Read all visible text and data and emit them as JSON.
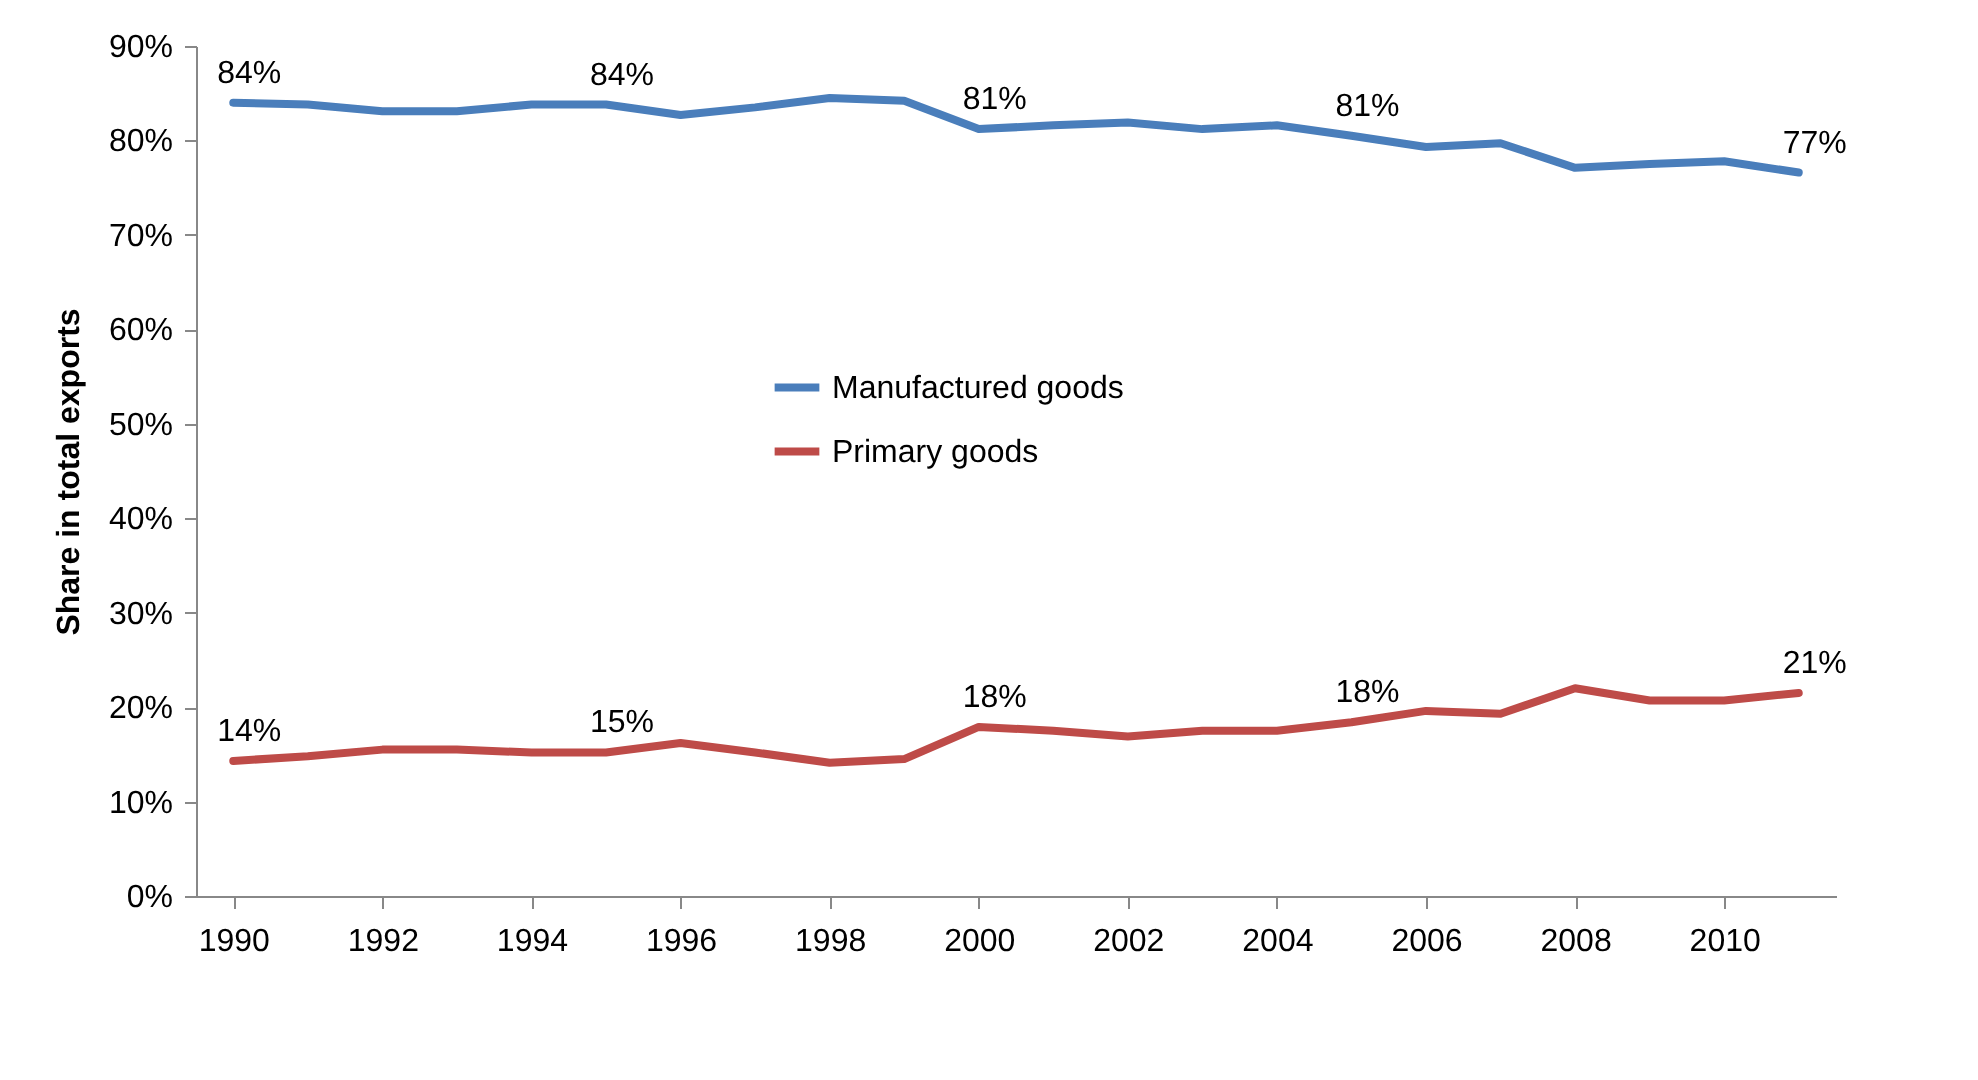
{
  "chart_data": {
    "type": "line",
    "ylabel": "Share in total exports",
    "x": [
      1990,
      1991,
      1992,
      1993,
      1994,
      1995,
      1996,
      1997,
      1998,
      1999,
      2000,
      2001,
      2002,
      2003,
      2004,
      2005,
      2006,
      2007,
      2008,
      2009,
      2010,
      2011
    ],
    "series": [
      {
        "name": "Manufactured goods",
        "color": "#4a7ebb",
        "values": [
          84.0,
          83.8,
          83.1,
          83.1,
          83.8,
          83.8,
          82.7,
          83.5,
          84.5,
          84.2,
          81.2,
          81.6,
          81.9,
          81.2,
          81.6,
          80.5,
          79.3,
          79.7,
          77.1,
          77.5,
          77.8,
          76.6
        ],
        "value_labels": [
          "84%",
          null,
          null,
          null,
          null,
          "84%",
          null,
          null,
          null,
          null,
          "81%",
          null,
          null,
          null,
          null,
          "81%",
          null,
          null,
          null,
          null,
          null,
          "77%"
        ]
      },
      {
        "name": "Primary goods",
        "color": "#be4b48",
        "values": [
          14.3,
          14.8,
          15.5,
          15.5,
          15.2,
          15.2,
          16.2,
          15.2,
          14.1,
          14.5,
          17.9,
          17.5,
          16.9,
          17.5,
          17.5,
          18.4,
          19.6,
          19.3,
          22.0,
          20.7,
          20.7,
          21.5
        ],
        "value_labels": [
          "14%",
          null,
          null,
          null,
          null,
          "15%",
          null,
          null,
          null,
          null,
          "18%",
          null,
          null,
          null,
          null,
          "18%",
          null,
          null,
          null,
          null,
          null,
          "21%"
        ]
      }
    ],
    "xlim": [
      1989.5,
      2011.5
    ],
    "xticks": [
      1990,
      1992,
      1994,
      1996,
      1998,
      2000,
      2002,
      2004,
      2006,
      2008,
      2010
    ],
    "ylim": [
      0,
      90
    ],
    "yticks": [
      {
        "value": 0,
        "label": "0%"
      },
      {
        "value": 10,
        "label": "10%"
      },
      {
        "value": 20,
        "label": "20%"
      },
      {
        "value": 30,
        "label": "30%"
      },
      {
        "value": 40,
        "label": "40%"
      },
      {
        "value": 50,
        "label": "50%"
      },
      {
        "value": 60,
        "label": "60%"
      },
      {
        "value": 70,
        "label": "70%"
      },
      {
        "value": 80,
        "label": "80%"
      },
      {
        "value": 90,
        "label": "90%"
      }
    ],
    "grid": false,
    "legend": "center",
    "marker": "none",
    "line_style": "solid"
  }
}
